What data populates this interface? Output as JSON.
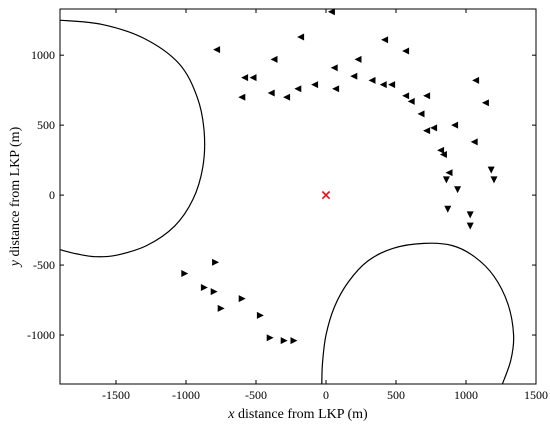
{
  "chart_data": {
    "type": "scatter",
    "xlabel_var": "x",
    "xlabel_rest": " distance from LKP (m)",
    "ylabel_var": "y",
    "ylabel_rest": " distance from LKP (m)",
    "xlim": [
      -1900,
      1500
    ],
    "ylim": [
      -1350,
      1330
    ],
    "xticks": [
      -1500,
      -1000,
      -500,
      0,
      500,
      1000,
      1500
    ],
    "yticks": [
      -1000,
      -500,
      0,
      500,
      1000
    ],
    "grid": false,
    "lkp": {
      "x": 0,
      "y": 0,
      "marker": "x",
      "color": "#e8101a"
    },
    "marker_color": "#000000",
    "contours": [
      {
        "name": "left",
        "points": [
          [
            -1900,
            1250
          ],
          [
            -1600,
            1220
          ],
          [
            -1300,
            1120
          ],
          [
            -1050,
            940
          ],
          [
            -920,
            700
          ],
          [
            -870,
            450
          ],
          [
            -880,
            200
          ],
          [
            -950,
            -30
          ],
          [
            -1080,
            -220
          ],
          [
            -1280,
            -360
          ],
          [
            -1500,
            -430
          ],
          [
            -1650,
            -440
          ],
          [
            -1780,
            -420
          ],
          [
            -1900,
            -390
          ]
        ]
      },
      {
        "name": "bottom-right",
        "points": [
          [
            -30,
            -1350
          ],
          [
            -25,
            -1200
          ],
          [
            0,
            -1000
          ],
          [
            60,
            -800
          ],
          [
            160,
            -620
          ],
          [
            300,
            -470
          ],
          [
            480,
            -380
          ],
          [
            700,
            -345
          ],
          [
            900,
            -360
          ],
          [
            1060,
            -440
          ],
          [
            1200,
            -580
          ],
          [
            1300,
            -780
          ],
          [
            1340,
            -1000
          ],
          [
            1320,
            -1180
          ],
          [
            1260,
            -1350
          ]
        ]
      }
    ],
    "points": [
      {
        "x": 40,
        "y": 1310,
        "dir": "left"
      },
      {
        "x": -180,
        "y": 1130,
        "dir": "left"
      },
      {
        "x": 420,
        "y": 1110,
        "dir": "left"
      },
      {
        "x": -780,
        "y": 1040,
        "dir": "left"
      },
      {
        "x": 570,
        "y": 1030,
        "dir": "left"
      },
      {
        "x": -370,
        "y": 970,
        "dir": "left"
      },
      {
        "x": 230,
        "y": 970,
        "dir": "left"
      },
      {
        "x": 1070,
        "y": 820,
        "dir": "left"
      },
      {
        "x": 60,
        "y": 910,
        "dir": "left"
      },
      {
        "x": -580,
        "y": 840,
        "dir": "left"
      },
      {
        "x": -520,
        "y": 840,
        "dir": "left"
      },
      {
        "x": 200,
        "y": 850,
        "dir": "left"
      },
      {
        "x": 330,
        "y": 820,
        "dir": "left"
      },
      {
        "x": 410,
        "y": 790,
        "dir": "left"
      },
      {
        "x": 470,
        "y": 790,
        "dir": "left"
      },
      {
        "x": -80,
        "y": 790,
        "dir": "left"
      },
      {
        "x": -200,
        "y": 760,
        "dir": "left"
      },
      {
        "x": 70,
        "y": 760,
        "dir": "left"
      },
      {
        "x": -390,
        "y": 730,
        "dir": "left"
      },
      {
        "x": -600,
        "y": 700,
        "dir": "left"
      },
      {
        "x": -280,
        "y": 700,
        "dir": "left"
      },
      {
        "x": 570,
        "y": 710,
        "dir": "left"
      },
      {
        "x": 720,
        "y": 710,
        "dir": "left"
      },
      {
        "x": 610,
        "y": 670,
        "dir": "left"
      },
      {
        "x": 1140,
        "y": 660,
        "dir": "left"
      },
      {
        "x": 680,
        "y": 580,
        "dir": "left"
      },
      {
        "x": 920,
        "y": 500,
        "dir": "left"
      },
      {
        "x": 770,
        "y": 480,
        "dir": "left"
      },
      {
        "x": 720,
        "y": 460,
        "dir": "left"
      },
      {
        "x": 1060,
        "y": 380,
        "dir": "left"
      },
      {
        "x": 820,
        "y": 320,
        "dir": "left"
      },
      {
        "x": 840,
        "y": 290,
        "dir": "left"
      },
      {
        "x": 880,
        "y": 160,
        "dir": "left"
      },
      {
        "x": 1180,
        "y": 180,
        "dir": "down"
      },
      {
        "x": 1200,
        "y": 110,
        "dir": "down"
      },
      {
        "x": 860,
        "y": 110,
        "dir": "down"
      },
      {
        "x": 940,
        "y": 40,
        "dir": "down"
      },
      {
        "x": 870,
        "y": -100,
        "dir": "down"
      },
      {
        "x": 1030,
        "y": -140,
        "dir": "down"
      },
      {
        "x": 1030,
        "y": -220,
        "dir": "down"
      },
      {
        "x": -1010,
        "y": -560,
        "dir": "right"
      },
      {
        "x": -790,
        "y": -480,
        "dir": "right"
      },
      {
        "x": -870,
        "y": -660,
        "dir": "right"
      },
      {
        "x": -800,
        "y": -690,
        "dir": "right"
      },
      {
        "x": -600,
        "y": -740,
        "dir": "right"
      },
      {
        "x": -750,
        "y": -810,
        "dir": "right"
      },
      {
        "x": -470,
        "y": -860,
        "dir": "right"
      },
      {
        "x": -400,
        "y": -1020,
        "dir": "right"
      },
      {
        "x": -300,
        "y": -1040,
        "dir": "right"
      },
      {
        "x": -230,
        "y": -1040,
        "dir": "right"
      }
    ]
  }
}
